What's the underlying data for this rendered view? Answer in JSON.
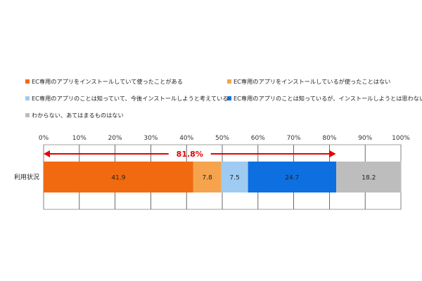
{
  "colors": {
    "used": "#f16a10",
    "installed_not_used": "#f5a44d",
    "know_will_install": "#9fcbf3",
    "know_wont_install": "#0e6fe0",
    "unknown": "#bdbdbd",
    "arrow": "#e60000",
    "grid": "#444444",
    "frame": "#888888"
  },
  "chart_data": {
    "type": "bar",
    "orientation": "horizontal",
    "stacked": true,
    "categories": [
      "利用状況"
    ],
    "series": [
      {
        "name": "EC専用のアプリをインストールしていて使ったことがある",
        "values": [
          41.9
        ],
        "color": "#f16a10"
      },
      {
        "name": "EC専用のアプリをインストールしているが使ったことはない",
        "values": [
          7.8
        ],
        "color": "#f5a44d"
      },
      {
        "name": "EC専用のアプリのことは知っていて、今後インストールしようと考えている",
        "values": [
          7.5
        ],
        "color": "#9fcbf3"
      },
      {
        "name": "EC専用のアプリのことは知っているが、インストールしようとは思わない",
        "values": [
          24.7
        ],
        "color": "#0e6fe0"
      },
      {
        "name": "わからない、あてはまるものはない",
        "values": [
          18.2
        ],
        "color": "#bdbdbd"
      }
    ],
    "xlim": [
      0,
      100
    ],
    "x_ticks": [
      "0%",
      "10%",
      "20%",
      "30%",
      "40%",
      "50%",
      "60%",
      "70%",
      "80%",
      "90%",
      "100%"
    ],
    "annotation": {
      "text": "81.8%",
      "from": 0,
      "to": 81.8
    },
    "legend_position": "top",
    "grid": true
  }
}
